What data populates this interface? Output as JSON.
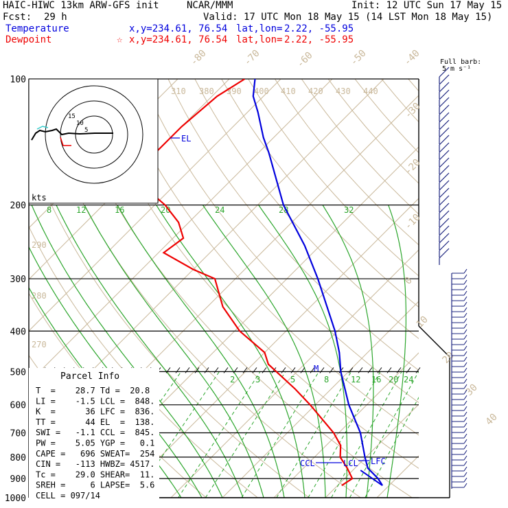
{
  "header": {
    "model": "HAIC-HIWC 13km ARW-GFS init",
    "org": "NCAR/MMM",
    "init": "Init: 12 UTC Sun 17 May 15",
    "fcst_label": "Fcst:",
    "fcst_value": "29 h",
    "valid": "Valid: 17 UTC Mon 18 May 15 (14 LST Mon 18 May 15)",
    "temperature_label": "Temperature",
    "dewpoint_label": "Dewpoint",
    "temp_coords": "x,y=234.61, 76.54",
    "dew_coords": "x,y=234.61, 76.54",
    "star": "☆",
    "latlon_label": "lat,lon=",
    "latlon_value": "2.22, -55.95"
  },
  "colors": {
    "temperature": "#0000dd",
    "dewpoint": "#ee0000",
    "dry_adiabat": "#c9b89a",
    "isotherm": "#c9b89a",
    "moist_adiabat": "#2aa52a",
    "mixing_ratio": "#2aa52a",
    "barb": "#1a237e"
  },
  "parcel_info": {
    "title": "Parcel Info",
    "rows": [
      "T  =    28.7 Td =  20.8",
      "LI =    -1.5 LCL =  848.",
      "K  =      36 LFC =  836.",
      "TT =      44 EL  =  138.",
      "SWI =   -1.1 CCL =  845.",
      "PW =    5.05 YGP =   0.1",
      "CAPE =   696 SWEAT=  254",
      "CIN =   -113 HWBZ= 4517.",
      "Tc =    29.0 SHEAR=  11.",
      "SREH =     6 LAPSE=  5.6",
      "CELL = 097/14"
    ]
  },
  "hodograph": {
    "units": "kts",
    "ring_labels": [
      "15",
      "10",
      "5"
    ]
  },
  "barb_key": {
    "line1": "Full barb:",
    "line2": "5 m s⁻¹"
  },
  "chart_data": {
    "type": "line",
    "subtype": "skew-T log-p",
    "y_axis": {
      "scale": "log",
      "range": [
        1000,
        100
      ],
      "ticks": [
        100,
        200,
        300,
        400,
        500,
        600,
        700,
        800,
        900,
        1000
      ]
    },
    "isotherm_labels": [
      -80,
      -70,
      -60,
      -50,
      -40,
      -30,
      -20,
      -10,
      0,
      10,
      20,
      30,
      40
    ],
    "theta_labels": [
      "310",
      "380",
      "390",
      "400",
      "410",
      "420",
      "430",
      "440",
      "290",
      "280",
      "270"
    ],
    "mixing_ratio_labels_upper": [
      "8",
      "12",
      "16",
      "20",
      "24",
      "28",
      "32"
    ],
    "mixing_ratio_labels_lower": [
      "2",
      "3",
      "5",
      "8",
      "12",
      "16",
      "20",
      "24"
    ],
    "series": [
      {
        "name": "Temperature",
        "points": [
          [
            935,
            28.7
          ],
          [
            900,
            26.5
          ],
          [
            850,
            22.5
          ],
          [
            800,
            19.8
          ],
          [
            700,
            14.2
          ],
          [
            600,
            6.5
          ],
          [
            500,
            -1.5
          ],
          [
            450,
            -5.5
          ],
          [
            400,
            -10.5
          ],
          [
            300,
            -24
          ],
          [
            250,
            -33
          ],
          [
            200,
            -45
          ],
          [
            150,
            -58
          ],
          [
            138,
            -62
          ],
          [
            120,
            -68
          ],
          [
            110,
            -72
          ],
          [
            100,
            -75
          ]
        ]
      },
      {
        "name": "Dewpoint",
        "points": [
          [
            935,
            20.8
          ],
          [
            900,
            21.5
          ],
          [
            850,
            18.5
          ],
          [
            800,
            15
          ],
          [
            750,
            12.8
          ],
          [
            700,
            9
          ],
          [
            600,
            -1
          ],
          [
            550,
            -7
          ],
          [
            480,
            -17
          ],
          [
            450,
            -20
          ],
          [
            400,
            -29
          ],
          [
            350,
            -37
          ],
          [
            300,
            -44
          ],
          [
            285,
            -50
          ],
          [
            260,
            -59
          ],
          [
            240,
            -58
          ],
          [
            220,
            -62
          ],
          [
            200,
            -68
          ],
          [
            180,
            -76
          ],
          [
            150,
            -80
          ],
          [
            130,
            -80
          ],
          [
            110,
            -79
          ],
          [
            100,
            -77
          ]
        ]
      }
    ],
    "markers": [
      {
        "label": "EL",
        "pressure": 138
      },
      {
        "label": "LFC",
        "pressure": 836
      },
      {
        "label": "LCL",
        "pressure": 848
      },
      {
        "label": "CCL",
        "pressure": 845
      },
      {
        "label": "M",
        "pressure": 500
      }
    ]
  }
}
